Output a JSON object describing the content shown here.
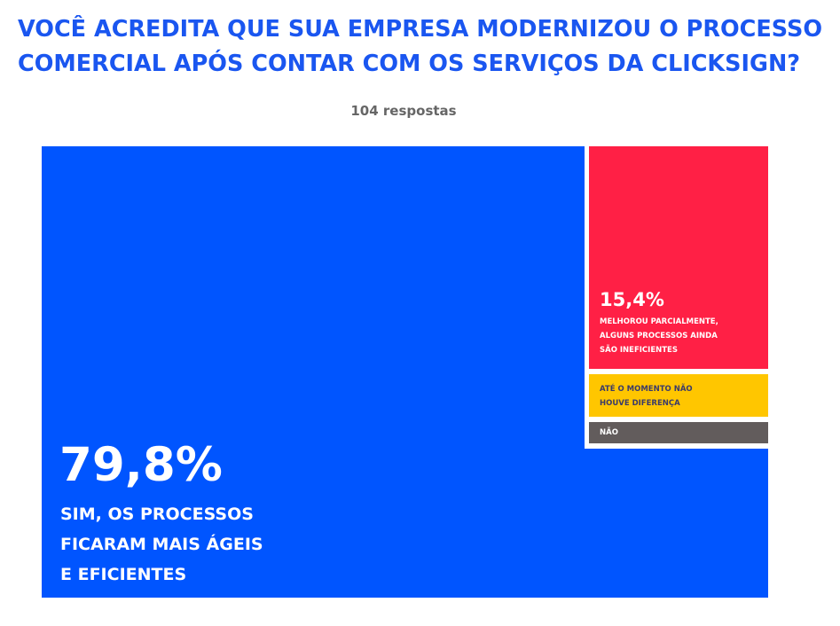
{
  "chart_data": {
    "type": "treemap",
    "title": "VOCÊ ACREDITA QUE SUA EMPRESA MODERNIZOU O PROCESSO COMERCIAL APÓS CONTAR COM OS SERVIÇOS DA CLICKSIGN?",
    "subtitle": "104 respostas",
    "segments": [
      {
        "pct_label": "79,8%",
        "value": 79.8,
        "label_lines": [
          "SIM, OS PROCESSOS",
          "FICARAM MAIS ÁGEIS",
          "E EFICIENTES"
        ],
        "color": "#0055ff"
      },
      {
        "pct_label": "15,4%",
        "value": 15.4,
        "label_lines": [
          "MELHOROU PARCIALMENTE,",
          "ALGUNS PROCESSOS AINDA",
          "SÃO INEFICIENTES"
        ],
        "color": "#ff2045"
      },
      {
        "value": 3.8,
        "label_lines": [
          "ATÉ O MOMENTO NÃO",
          "HOUVE DIFERENÇA"
        ],
        "color": "#ffc600"
      },
      {
        "value": 1.0,
        "label_lines": [
          "NÃO"
        ],
        "color": "#625c5c"
      }
    ]
  }
}
